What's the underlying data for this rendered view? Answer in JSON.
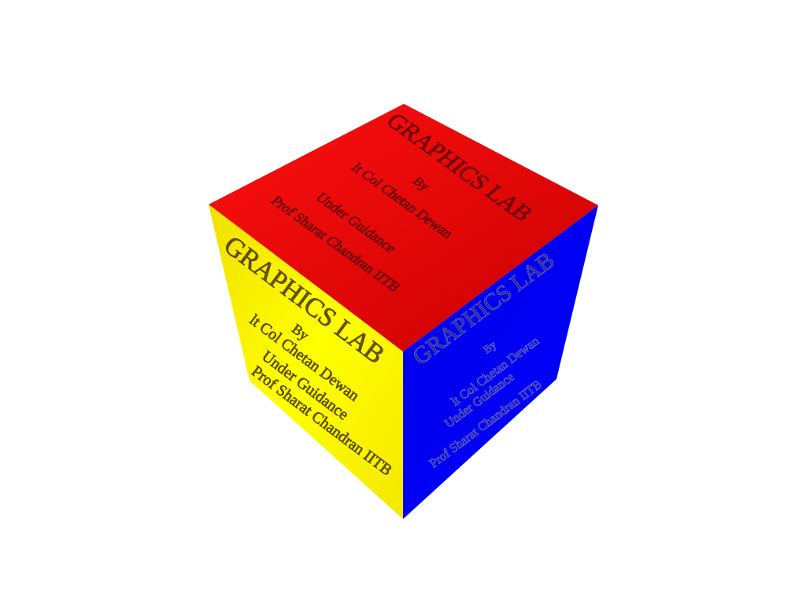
{
  "scene": {
    "background": "#ffffff",
    "object": "cube",
    "faces": {
      "top": {
        "color": "#ff0000",
        "shade": "#c40000",
        "lines": [
          "GRAPHICS LAB",
          "By",
          "lt Col Chetan Dewan",
          "Under Guidance",
          "Prof Sharat Chandran IITB"
        ]
      },
      "left": {
        "color": "#ffff00",
        "shade": "#e0d000",
        "lines": [
          "GRAPHICS LAB",
          "By",
          "lt Col Chetan Dewan",
          "Under Guidance",
          "Prof Sharat Chandran IITB"
        ]
      },
      "right": {
        "color": "#0000ff",
        "shade": "#0000c8",
        "lines": [
          "GRAPHICS LAB",
          "By",
          "lt Col Chetan Dewan",
          "Under Guidance",
          "Prof Sharat Chandran IITB"
        ]
      }
    }
  }
}
